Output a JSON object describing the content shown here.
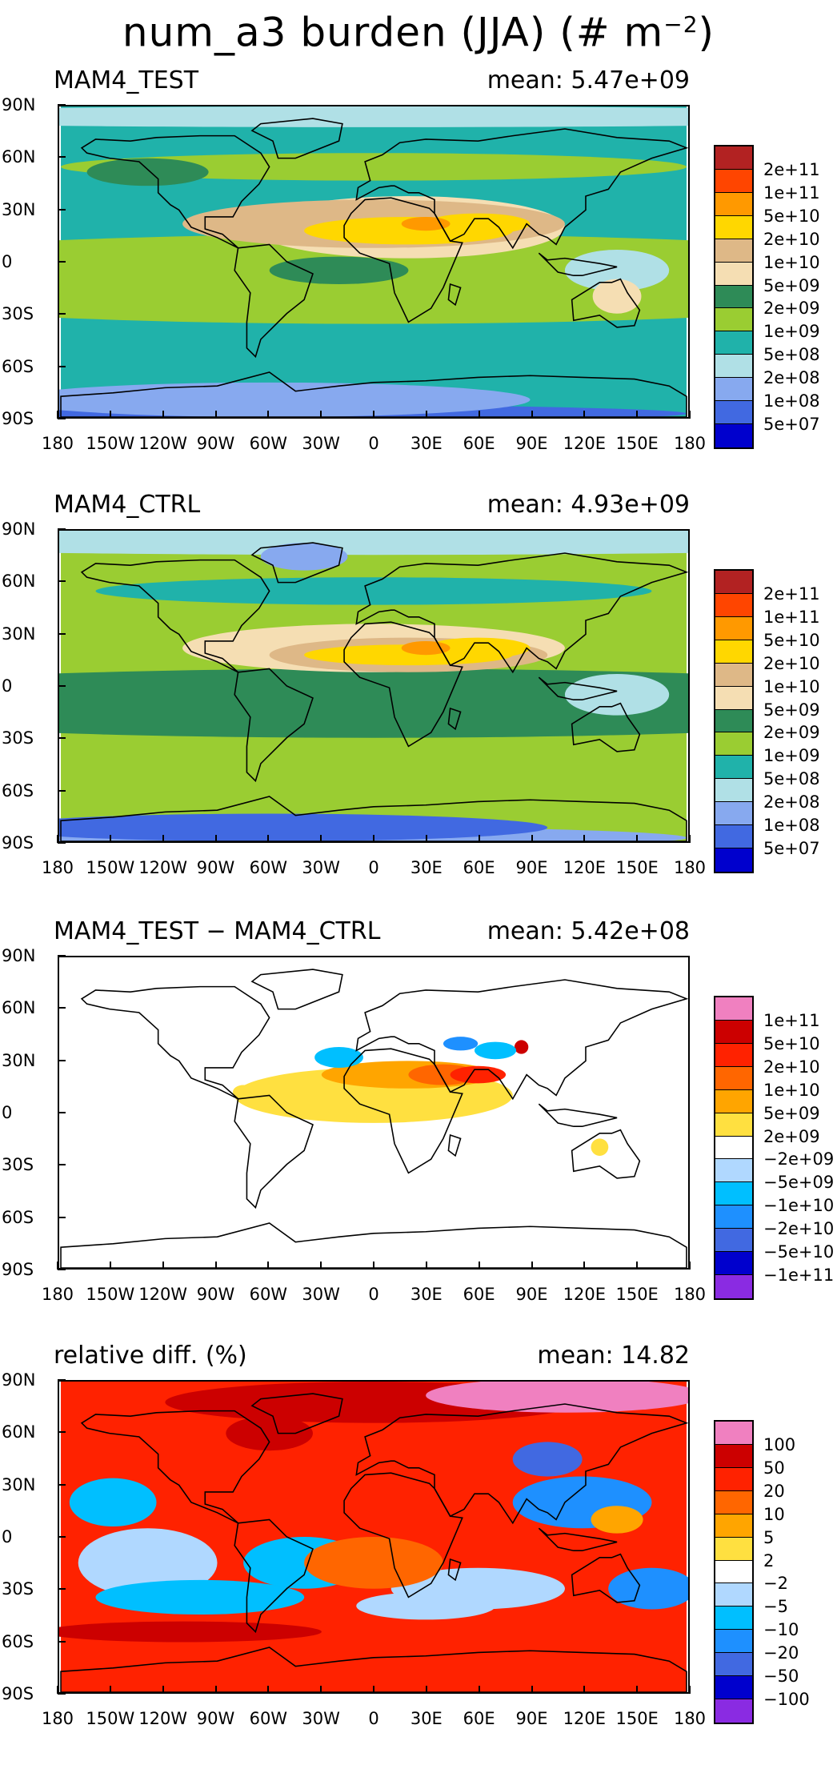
{
  "figure_title": "num_a3 burden (JJA) (# m",
  "figure_title_sup": "−2",
  "figure_title_end": ")",
  "axes": {
    "lat_labels": [
      "90N",
      "60N",
      "30N",
      "0",
      "30S",
      "60S",
      "90S"
    ],
    "lon_labels": [
      "180",
      "150W",
      "120W",
      "90W",
      "60W",
      "30W",
      "0",
      "30E",
      "60E",
      "90E",
      "120E",
      "150E",
      "180"
    ]
  },
  "chart_data": [
    {
      "type": "heatmap",
      "panel": "MAM4_TEST",
      "title": "MAM4_TEST",
      "mean_text": "mean: 5.47e+09",
      "mean": 5470000000.0,
      "x_range": [
        -180,
        180
      ],
      "y_range": [
        -90,
        90
      ],
      "colorbar_labels": [
        "2e+11",
        "1e+11",
        "5e+10",
        "2e+10",
        "1e+10",
        "5e+09",
        "2e+09",
        "1e+09",
        "5e+08",
        "2e+08",
        "1e+08",
        "5e+07"
      ],
      "colorbar_colors": [
        "#b22222",
        "#ff4500",
        "#ff9900",
        "#ffd700",
        "#deb887",
        "#f5deb3",
        "#2e8b57",
        "#9acd32",
        "#20b2aa",
        "#b0e0e6",
        "#87a9ef",
        "#4169e1",
        "#0000cd"
      ]
    },
    {
      "type": "heatmap",
      "panel": "MAM4_CTRL",
      "title": "MAM4_CTRL",
      "mean_text": "mean: 4.93e+09",
      "mean": 4930000000.0,
      "x_range": [
        -180,
        180
      ],
      "y_range": [
        -90,
        90
      ],
      "colorbar_labels": [
        "2e+11",
        "1e+11",
        "5e+10",
        "2e+10",
        "1e+10",
        "5e+09",
        "2e+09",
        "1e+09",
        "5e+08",
        "2e+08",
        "1e+08",
        "5e+07"
      ],
      "colorbar_colors": [
        "#b22222",
        "#ff4500",
        "#ff9900",
        "#ffd700",
        "#deb887",
        "#f5deb3",
        "#2e8b57",
        "#9acd32",
        "#20b2aa",
        "#b0e0e6",
        "#87a9ef",
        "#4169e1",
        "#0000cd"
      ]
    },
    {
      "type": "heatmap",
      "panel": "difference",
      "title": "MAM4_TEST − MAM4_CTRL",
      "mean_text": "mean: 5.42e+08",
      "mean": 542000000.0,
      "x_range": [
        -180,
        180
      ],
      "y_range": [
        -90,
        90
      ],
      "colorbar_labels": [
        "1e+11",
        "5e+10",
        "2e+10",
        "1e+10",
        "5e+09",
        "2e+09",
        "−2e+09",
        "−5e+09",
        "−1e+10",
        "−2e+10",
        "−5e+10",
        "−1e+11"
      ],
      "colorbar_colors": [
        "#f080c0",
        "#cc0000",
        "#ff2200",
        "#ff6600",
        "#ffa500",
        "#ffe040",
        "#ffffff",
        "#b0d8ff",
        "#00bfff",
        "#1e90ff",
        "#4169e1",
        "#0000cd",
        "#8a2be2"
      ]
    },
    {
      "type": "heatmap",
      "panel": "relative_diff",
      "title": "relative diff. (%)",
      "mean_text": "mean: 14.82",
      "mean": 14.82,
      "x_range": [
        -180,
        180
      ],
      "y_range": [
        -90,
        90
      ],
      "colorbar_labels": [
        "100",
        "50",
        "20",
        "10",
        "5",
        "2",
        "−2",
        "−5",
        "−10",
        "−20",
        "−50",
        "−100"
      ],
      "colorbar_colors": [
        "#f080c0",
        "#cc0000",
        "#ff2200",
        "#ff6600",
        "#ffa500",
        "#ffe040",
        "#ffffff",
        "#b0d8ff",
        "#00bfff",
        "#1e90ff",
        "#4169e1",
        "#0000cd",
        "#8a2be2"
      ]
    }
  ]
}
